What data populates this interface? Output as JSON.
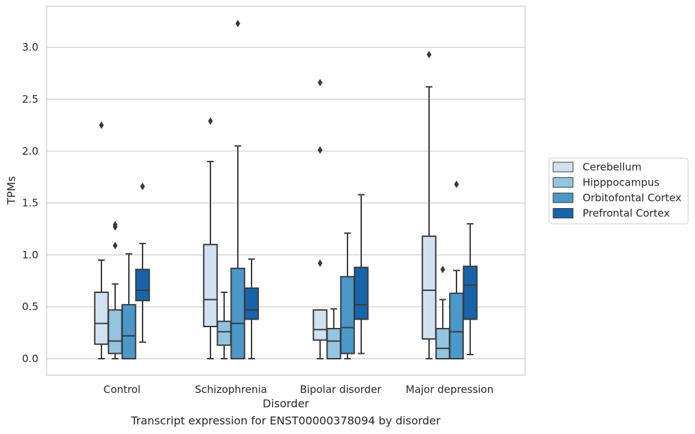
{
  "caption": "Transcript expression for ENST00000378094 by disorder",
  "chart_data": {
    "type": "box",
    "xlabel": "Disorder",
    "ylabel": "TPMs",
    "ylim": [
      -0.16,
      3.4
    ],
    "yticks": [
      0.0,
      0.5,
      1.0,
      1.5,
      2.0,
      2.5,
      3.0
    ],
    "ytick_labels": [
      "0.0",
      "0.5",
      "1.0",
      "1.5",
      "2.0",
      "2.5",
      "3.0"
    ],
    "grid": "horizontal",
    "legend_position": "right",
    "categories": [
      "Control",
      "Schizophrenia",
      "Bipolar disorder",
      "Major depression"
    ],
    "series": [
      {
        "name": "Cerebellum",
        "color": "#d0e1f2",
        "boxes": [
          {
            "whisker_low": 0.0,
            "q1": 0.14,
            "median": 0.34,
            "q3": 0.64,
            "whisker_high": 0.95,
            "outliers": [
              2.25
            ]
          },
          {
            "whisker_low": 0.0,
            "q1": 0.31,
            "median": 0.57,
            "q3": 1.1,
            "whisker_high": 1.9,
            "outliers": [
              2.29
            ]
          },
          {
            "whisker_low": 0.0,
            "q1": 0.18,
            "median": 0.28,
            "q3": 0.47,
            "whisker_high": 0.47,
            "outliers": [
              0.92,
              2.01,
              2.66
            ]
          },
          {
            "whisker_low": 0.0,
            "q1": 0.19,
            "median": 0.66,
            "q3": 1.18,
            "whisker_high": 2.62,
            "outliers": [
              2.93
            ]
          }
        ]
      },
      {
        "name": "Hipppocampus",
        "color": "#94c4df",
        "boxes": [
          {
            "whisker_low": 0.0,
            "q1": 0.05,
            "median": 0.17,
            "q3": 0.47,
            "whisker_high": 0.72,
            "outliers": [
              1.09,
              1.27,
              1.29
            ]
          },
          {
            "whisker_low": 0.0,
            "q1": 0.13,
            "median": 0.26,
            "q3": 0.36,
            "whisker_high": 0.64,
            "outliers": []
          },
          {
            "whisker_low": 0.0,
            "q1": 0.0,
            "median": 0.17,
            "q3": 0.29,
            "whisker_high": 0.48,
            "outliers": []
          },
          {
            "whisker_low": 0.0,
            "q1": 0.0,
            "median": 0.1,
            "q3": 0.29,
            "whisker_high": 0.57,
            "outliers": [
              0.86
            ]
          }
        ]
      },
      {
        "name": "Orbitofontal Cortex",
        "color": "#4b98c9",
        "boxes": [
          {
            "whisker_low": 0.0,
            "q1": 0.0,
            "median": 0.22,
            "q3": 0.52,
            "whisker_high": 1.01,
            "outliers": []
          },
          {
            "whisker_low": 0.0,
            "q1": 0.0,
            "median": 0.34,
            "q3": 0.87,
            "whisker_high": 2.05,
            "outliers": [
              3.23
            ]
          },
          {
            "whisker_low": 0.0,
            "q1": 0.05,
            "median": 0.3,
            "q3": 0.79,
            "whisker_high": 1.21,
            "outliers": []
          },
          {
            "whisker_low": 0.0,
            "q1": 0.0,
            "median": 0.26,
            "q3": 0.63,
            "whisker_high": 0.85,
            "outliers": [
              1.68
            ]
          }
        ]
      },
      {
        "name": "Prefrontal Cortex",
        "color": "#1764ab",
        "boxes": [
          {
            "whisker_low": 0.16,
            "q1": 0.56,
            "median": 0.66,
            "q3": 0.86,
            "whisker_high": 1.11,
            "outliers": [
              1.66
            ]
          },
          {
            "whisker_low": 0.0,
            "q1": 0.38,
            "median": 0.47,
            "q3": 0.68,
            "whisker_high": 0.96,
            "outliers": []
          },
          {
            "whisker_low": 0.05,
            "q1": 0.38,
            "median": 0.52,
            "q3": 0.88,
            "whisker_high": 1.58,
            "outliers": []
          },
          {
            "whisker_low": 0.04,
            "q1": 0.38,
            "median": 0.71,
            "q3": 0.89,
            "whisker_high": 1.3,
            "outliers": []
          }
        ]
      }
    ]
  }
}
